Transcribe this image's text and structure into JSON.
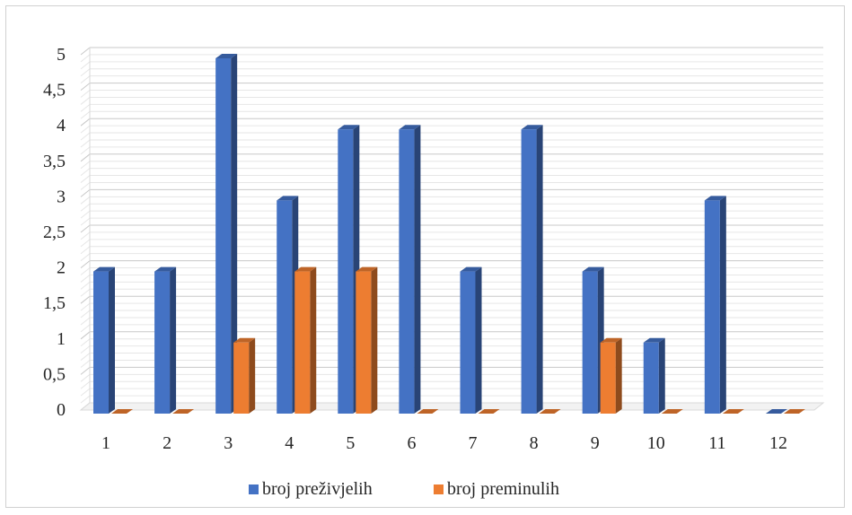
{
  "chart_data": {
    "type": "bar",
    "title": "",
    "xlabel": "",
    "ylabel": "",
    "categories": [
      "1",
      "2",
      "3",
      "4",
      "5",
      "6",
      "7",
      "8",
      "9",
      "10",
      "11",
      "12"
    ],
    "series": [
      {
        "name": "broj preživjelih",
        "color": "#4472C4",
        "values": [
          2,
          2,
          5,
          3,
          4,
          4,
          2,
          4,
          2,
          1,
          3,
          0
        ]
      },
      {
        "name": "broj preminulih",
        "color": "#ED7D31",
        "values": [
          0,
          0,
          1,
          2,
          2,
          0,
          0,
          0,
          1,
          0,
          0,
          0
        ]
      }
    ],
    "ylim": [
      0,
      5
    ],
    "yticks": [
      "0",
      "0,5",
      "1",
      "1,5",
      "2",
      "2,5",
      "3",
      "3,5",
      "4",
      "4,5",
      "5"
    ],
    "grid": true,
    "legend": "bottom",
    "style": "3d-clustered-column"
  }
}
